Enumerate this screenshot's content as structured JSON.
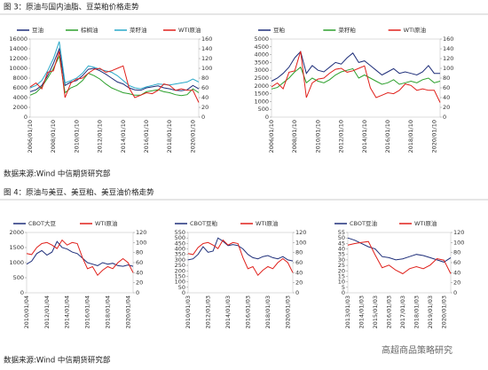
{
  "page": {
    "fig3_title": "图 3：原油与国内油脂、豆菜粕价格走势",
    "source1": "数据来源:Wind 中信期货研究部",
    "fig4_title": "图 4：原油与美豆、美豆粕、美豆油价格走势",
    "source2": "数据来源:Wind 中信期货研究部",
    "watermark": "高超商品策略研究"
  },
  "chart_data": [
    {
      "type": "line",
      "categories": [
        "2006/01/10",
        null,
        null,
        null,
        "2008/01/10",
        null,
        null,
        null,
        "2010/01/10",
        null,
        null,
        null,
        "2012/01/10",
        null,
        null,
        null,
        "2014/01/10",
        null,
        null,
        null,
        "2016/01/10",
        null,
        null,
        null,
        "2018/01/10",
        null,
        null,
        null,
        "2020/01/10",
        null
      ],
      "ylim": [
        0,
        16000
      ],
      "yticks": [
        0,
        2000,
        4000,
        6000,
        8000,
        10000,
        12000,
        14000,
        16000
      ],
      "y2lim": [
        0,
        160
      ],
      "y2ticks": [
        0,
        20,
        40,
        60,
        80,
        100,
        120,
        140,
        160
      ],
      "series": [
        {
          "name": "豆油",
          "color": "#1f2f7a",
          "values": [
            5200,
            5600,
            6500,
            8500,
            11000,
            14000,
            6500,
            7200,
            7500,
            8500,
            9800,
            10000,
            9500,
            8800,
            8000,
            7200,
            6800,
            6000,
            5600,
            5500,
            6000,
            6200,
            6400,
            6000,
            5800,
            5500,
            5400,
            5600,
            6500,
            5800
          ]
        },
        {
          "name": "棕榈油",
          "color": "#2ca02c",
          "values": [
            4500,
            5000,
            6200,
            8000,
            10000,
            12500,
            5000,
            6000,
            6500,
            7500,
            9000,
            8500,
            7800,
            6800,
            6000,
            5500,
            5000,
            4800,
            4500,
            4500,
            5200,
            5400,
            5600,
            5200,
            5000,
            4600,
            4400,
            4600,
            5800,
            5000
          ]
        },
        {
          "name": "菜籽油",
          "color": "#29a8c8",
          "values": [
            6000,
            6500,
            7500,
            9500,
            12000,
            15500,
            7000,
            7500,
            8000,
            9000,
            10500,
            10200,
            9800,
            9500,
            9200,
            8500,
            7500,
            6500,
            6000,
            5800,
            6200,
            6500,
            6800,
            6700,
            6600,
            6800,
            7000,
            7200,
            7800,
            7200
          ]
        },
        {
          "name": "WTI原油",
          "color": "#e0201b",
          "axis": "y2",
          "values": [
            62,
            70,
            58,
            92,
            95,
            135,
            40,
            70,
            78,
            80,
            90,
            98,
            100,
            92,
            95,
            100,
            105,
            60,
            40,
            45,
            50,
            48,
            55,
            68,
            65,
            55,
            58,
            55,
            55,
            30
          ]
        }
      ]
    },
    {
      "type": "line",
      "categories": [
        "2006/01/10",
        null,
        null,
        null,
        "2008/01/10",
        null,
        null,
        null,
        "2010/01/10",
        null,
        null,
        null,
        "2012/01/10",
        null,
        null,
        null,
        "2014/01/10",
        null,
        null,
        null,
        "2016/01/10",
        null,
        null,
        null,
        "2018/01/10",
        null,
        null,
        null,
        "2020/01/10",
        null
      ],
      "ylim": [
        0,
        5000
      ],
      "yticks": [
        0,
        500,
        1000,
        1500,
        2000,
        2500,
        3000,
        3500,
        4000,
        4500,
        5000
      ],
      "y2lim": [
        0,
        160
      ],
      "y2ticks": [
        0,
        20,
        40,
        60,
        80,
        100,
        120,
        140,
        160
      ],
      "series": [
        {
          "name": "豆粕",
          "color": "#1f2f7a",
          "values": [
            2300,
            2500,
            2800,
            3200,
            3800,
            4200,
            2800,
            3300,
            3000,
            2900,
            3200,
            3500,
            3400,
            3800,
            4100,
            3500,
            3600,
            3300,
            3000,
            2700,
            2900,
            3100,
            2800,
            2900,
            2800,
            2700,
            2900,
            3300,
            2800,
            2800
          ]
        },
        {
          "name": "菜籽粕",
          "color": "#2ca02c",
          "values": [
            1800,
            1900,
            2200,
            2500,
            2900,
            3200,
            2200,
            2500,
            2300,
            2200,
            2400,
            2700,
            2900,
            3000,
            3100,
            2500,
            2700,
            2500,
            2300,
            2100,
            2200,
            2400,
            2100,
            2200,
            2300,
            2200,
            2400,
            2500,
            2200,
            2300
          ]
        },
        {
          "name": "WTI原油",
          "color": "#e0201b",
          "axis": "y2",
          "values": [
            62,
            70,
            58,
            92,
            95,
            135,
            40,
            70,
            78,
            80,
            90,
            98,
            100,
            92,
            95,
            100,
            105,
            60,
            40,
            45,
            50,
            48,
            55,
            68,
            65,
            55,
            58,
            55,
            55,
            30
          ]
        }
      ]
    },
    {
      "type": "line",
      "categories": [
        "2010/01/04",
        null,
        null,
        null,
        "2012/01/04",
        null,
        null,
        null,
        "2014/01/04",
        null,
        null,
        null,
        "2016/01/04",
        null,
        null,
        null,
        "2018/01/04",
        null,
        null,
        null,
        "2020/01/04",
        null
      ],
      "ylim": [
        0,
        2000
      ],
      "yticks": [
        0,
        500,
        1000,
        1500,
        2000
      ],
      "y2lim": [
        0,
        120
      ],
      "y2ticks": [
        0,
        20,
        40,
        60,
        80,
        100,
        120
      ],
      "series": [
        {
          "name": "CBOT大豆",
          "color": "#1f2f7a",
          "values": [
            950,
            1050,
            1300,
            1400,
            1250,
            1350,
            1700,
            1500,
            1450,
            1350,
            1300,
            1150,
            1000,
            950,
            900,
            1000,
            950,
            980,
            900,
            880,
            920,
            880
          ]
        },
        {
          "name": "WTI原油",
          "color": "#e0201b",
          "axis": "y2",
          "values": [
            78,
            76,
            90,
            98,
            100,
            95,
            88,
            105,
            95,
            100,
            98,
            70,
            48,
            52,
            35,
            45,
            52,
            48,
            60,
            68,
            60,
            40
          ]
        }
      ]
    },
    {
      "type": "line",
      "categories": [
        "2010/01/03",
        null,
        null,
        null,
        "2012/01/03",
        null,
        null,
        null,
        "2014/01/03",
        null,
        null,
        null,
        "2016/01/03",
        null,
        null,
        null,
        "2018/01/03",
        null,
        null,
        null,
        "2020/01/03",
        null
      ],
      "ylim": [
        0,
        550
      ],
      "yticks": [
        0,
        50,
        100,
        150,
        200,
        250,
        300,
        350,
        400,
        450,
        500,
        550
      ],
      "y2lim": [
        0,
        120
      ],
      "y2ticks": [
        0,
        20,
        40,
        60,
        80,
        100,
        120
      ],
      "series": [
        {
          "name": "CBOT豆粕",
          "color": "#1f2f7a",
          "values": [
            300,
            310,
            350,
            420,
            370,
            380,
            500,
            470,
            430,
            440,
            430,
            400,
            350,
            320,
            310,
            330,
            340,
            320,
            310,
            330,
            300,
            290
          ]
        },
        {
          "name": "WTI原油",
          "color": "#e0201b",
          "axis": "y2",
          "values": [
            78,
            76,
            90,
            98,
            100,
            95,
            88,
            105,
            95,
            100,
            98,
            70,
            48,
            52,
            35,
            45,
            52,
            48,
            60,
            68,
            60,
            40
          ]
        }
      ]
    },
    {
      "type": "line",
      "categories": [
        "2013/01/03",
        null,
        "2014/01/03",
        null,
        "2015/01/03",
        null,
        "2016/01/03",
        null,
        "2017/01/03",
        null,
        "2018/01/03",
        null,
        "2019/01/03",
        null,
        "2020/01/03",
        null
      ],
      "ylim": [
        0,
        55
      ],
      "yticks": [
        0,
        5,
        10,
        15,
        20,
        25,
        30,
        35,
        40,
        45,
        50,
        55
      ],
      "y2lim": [
        0,
        120
      ],
      "y2ticks": [
        0,
        20,
        40,
        60,
        80,
        100,
        120
      ],
      "series": [
        {
          "name": "CBOT豆油",
          "color": "#1f2f7a",
          "values": [
            50,
            48,
            45,
            42,
            40,
            33,
            32,
            30,
            31,
            33,
            35,
            34,
            32,
            30,
            28,
            32
          ]
        },
        {
          "name": "WTI原油",
          "color": "#e0201b",
          "axis": "y2",
          "values": [
            95,
            98,
            100,
            102,
            75,
            50,
            55,
            45,
            38,
            48,
            52,
            48,
            55,
            68,
            65,
            38
          ]
        }
      ]
    }
  ]
}
